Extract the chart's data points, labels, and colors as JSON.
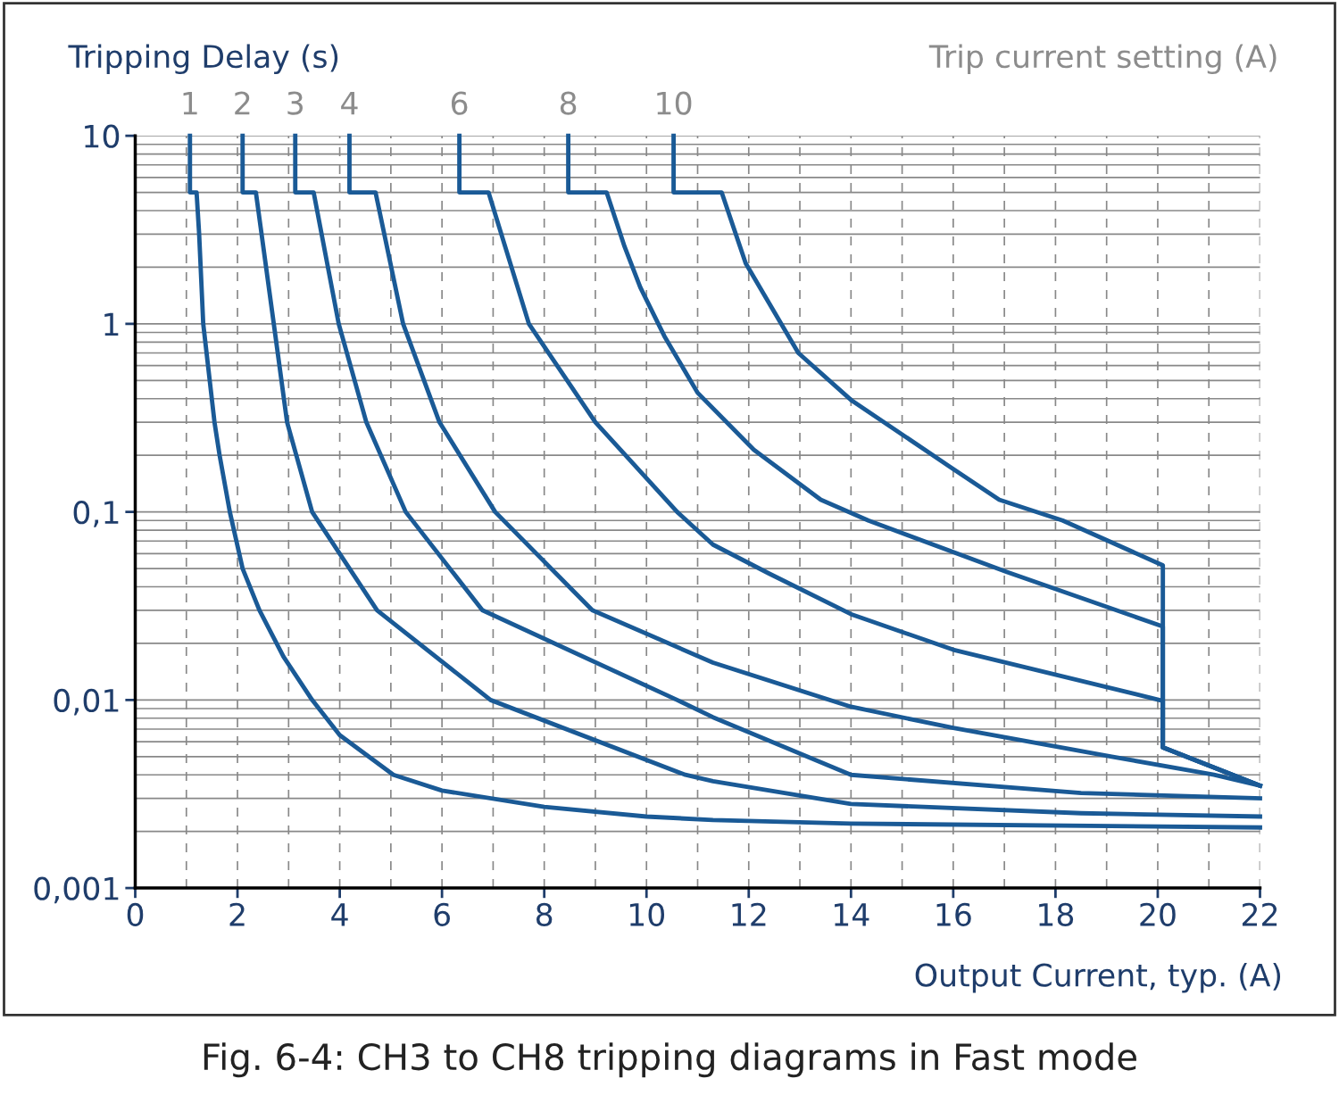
{
  "chart_data": {
    "type": "line",
    "ylabel": "Tripping Delay (s)",
    "xlabel": "Output Current, typ. (A)",
    "legend_title": "Trip current setting (A)",
    "annotations": [
      "Fig. 6-4: CH3 to CH8 tripping diagrams in Fast mode"
    ],
    "log": "y",
    "grid": true,
    "legend": false,
    "marker": "none",
    "line_style": "solid",
    "xlim": [
      0,
      22
    ],
    "xticks": [
      0,
      2,
      4,
      6,
      8,
      10,
      12,
      14,
      16,
      18,
      20,
      22
    ],
    "ylim": [
      0.001,
      10
    ],
    "yticks": [
      {
        "value": 0.001,
        "label": "0,001"
      },
      {
        "value": 0.01,
        "label": "0,01"
      },
      {
        "value": 0.1,
        "label": "0,1"
      },
      {
        "value": 1,
        "label": "1"
      },
      {
        "value": 10,
        "label": "10"
      }
    ],
    "series": [
      {
        "name": "1",
        "color": "#1a5a96",
        "x": [
          1.07,
          1.07,
          1.2,
          1.25,
          1.33,
          1.55,
          1.65,
          1.85,
          2.1,
          2.43,
          2.9,
          3.46,
          4.0,
          5.05,
          6.0,
          8.0,
          10.0,
          11.3,
          14.0,
          22.0
        ],
        "values": [
          10,
          5,
          5,
          3,
          1,
          0.3,
          0.2,
          0.1,
          0.05,
          0.03,
          0.017,
          0.01,
          0.0065,
          0.004,
          0.0033,
          0.0027,
          0.0024,
          0.0023,
          0.0022,
          0.0021
        ]
      },
      {
        "name": "2",
        "color": "#1a5a96",
        "x": [
          2.1,
          2.1,
          2.36,
          2.71,
          2.97,
          3.46,
          4.73,
          6.95,
          10.76,
          11.3,
          14.0,
          18.5,
          22.0
        ],
        "values": [
          10,
          5,
          5,
          1,
          0.3,
          0.1,
          0.03,
          0.01,
          0.004,
          0.0037,
          0.0028,
          0.0025,
          0.0024
        ]
      },
      {
        "name": "3",
        "color": "#1a5a96",
        "x": [
          3.13,
          3.13,
          3.49,
          3.98,
          4.52,
          5.29,
          6.79,
          10.6,
          11.3,
          14.0,
          18.5,
          22.0
        ],
        "values": [
          10,
          5,
          5,
          1,
          0.3,
          0.1,
          0.03,
          0.01,
          0.0081,
          0.004,
          0.0032,
          0.003
        ]
      },
      {
        "name": "4",
        "color": "#1a5a96",
        "x": [
          4.19,
          4.19,
          4.7,
          5.24,
          5.95,
          7.04,
          8.94,
          11.3,
          14.0,
          16.0,
          19.1,
          21.1,
          22.0
        ],
        "values": [
          10,
          5,
          5,
          1,
          0.3,
          0.1,
          0.03,
          0.0158,
          0.0092,
          0.0071,
          0.005,
          0.004,
          0.0035
        ]
      },
      {
        "name": "6",
        "color": "#1a5a96",
        "x": [
          6.34,
          6.34,
          6.91,
          7.7,
          9.0,
          10.6,
          11.3,
          12.4,
          14.0,
          16.0,
          20.1,
          20.1,
          22.0
        ],
        "values": [
          10,
          5,
          5,
          1,
          0.3,
          0.1,
          0.067,
          0.047,
          0.0286,
          0.0185,
          0.0099,
          0.0056,
          0.0035
        ]
      },
      {
        "name": "8",
        "color": "#1a5a96",
        "x": [
          8.47,
          8.47,
          9.22,
          9.57,
          9.88,
          10.35,
          11.0,
          12.1,
          13.41,
          14.34,
          17.04,
          20.1,
          20.1,
          22.0
        ],
        "values": [
          10,
          5,
          5,
          2.58,
          1.56,
          0.86,
          0.43,
          0.214,
          0.116,
          0.09,
          0.048,
          0.0246,
          0.0056,
          0.0035
        ]
      },
      {
        "name": "10",
        "color": "#1a5a96",
        "x": [
          10.53,
          10.53,
          11.47,
          11.94,
          12.97,
          14.02,
          15.92,
          16.9,
          18.14,
          20.1,
          20.1,
          22.0
        ],
        "values": [
          10,
          5,
          5,
          2.1,
          0.7,
          0.39,
          0.175,
          0.116,
          0.09,
          0.052,
          0.0056,
          0.0035
        ]
      }
    ]
  }
}
